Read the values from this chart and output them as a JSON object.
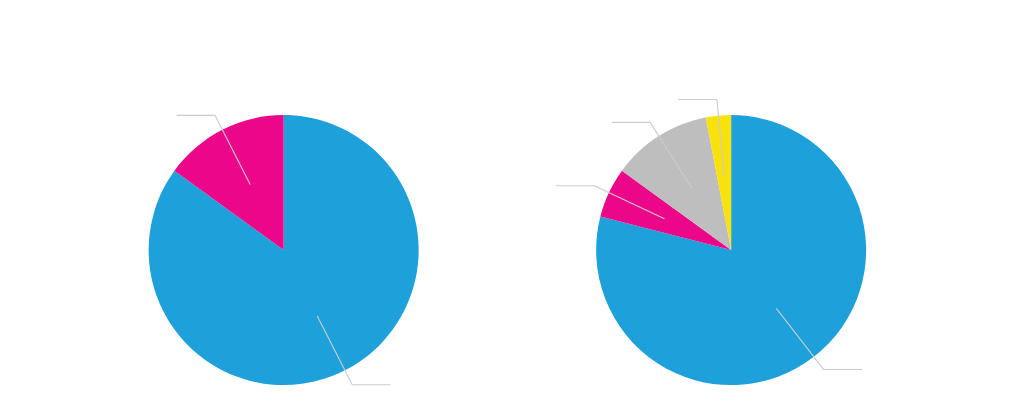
{
  "chart_data": [
    {
      "type": "pie",
      "categories": [
        null,
        null
      ],
      "values": [
        85,
        15
      ],
      "colors": [
        "#1ea1da",
        "#ec0689"
      ],
      "legend": false
    },
    {
      "type": "pie",
      "categories": [
        null,
        null,
        null,
        null
      ],
      "values": [
        79,
        6,
        12,
        3
      ],
      "colors": [
        "#1ea1da",
        "#ec0689",
        "#bebebe",
        "#f9e20b"
      ],
      "legend": false
    }
  ]
}
